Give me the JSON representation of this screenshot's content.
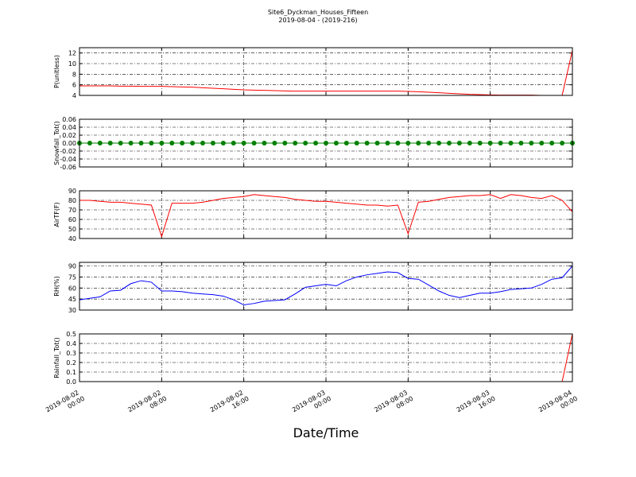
{
  "title": "Site6_Dyckman_Houses_Fifteen",
  "subtitle": "2019-08-04 - (2019-216)",
  "xlabel": "Date/Time",
  "chart_data": [
    {
      "type": "line",
      "ylabel": "P(unitless)",
      "color": "#ff0000",
      "grid": true,
      "x": [
        "2019-08-02 00:00",
        "2019-08-02 01:00",
        "2019-08-02 02:00",
        "2019-08-02 03:00",
        "2019-08-02 04:00",
        "2019-08-02 05:00",
        "2019-08-02 06:00",
        "2019-08-02 07:00",
        "2019-08-02 08:00",
        "2019-08-02 09:00",
        "2019-08-02 10:00",
        "2019-08-02 11:00",
        "2019-08-02 12:00",
        "2019-08-02 13:00",
        "2019-08-02 14:00",
        "2019-08-02 15:00",
        "2019-08-02 16:00",
        "2019-08-02 17:00",
        "2019-08-02 18:00",
        "2019-08-02 19:00",
        "2019-08-02 20:00",
        "2019-08-02 21:00",
        "2019-08-02 22:00",
        "2019-08-02 23:00",
        "2019-08-03 00:00",
        "2019-08-03 01:00",
        "2019-08-03 02:00",
        "2019-08-03 03:00",
        "2019-08-03 04:00",
        "2019-08-03 05:00",
        "2019-08-03 06:00",
        "2019-08-03 07:00",
        "2019-08-03 08:00",
        "2019-08-03 09:00",
        "2019-08-03 10:00",
        "2019-08-03 11:00",
        "2019-08-03 12:00",
        "2019-08-03 13:00",
        "2019-08-03 14:00",
        "2019-08-03 15:00",
        "2019-08-03 16:00",
        "2019-08-03 17:00",
        "2019-08-03 18:00",
        "2019-08-03 19:00",
        "2019-08-03 20:00",
        "2019-08-03 21:00",
        "2019-08-03 22:00",
        "2019-08-03 23:00",
        "2019-08-04 00:00"
      ],
      "values": [
        5.8,
        5.8,
        5.8,
        5.8,
        5.75,
        5.75,
        5.7,
        5.7,
        5.7,
        5.65,
        5.6,
        5.55,
        5.45,
        5.35,
        5.25,
        5.15,
        5.05,
        5.0,
        4.95,
        4.9,
        4.85,
        4.8,
        4.8,
        4.8,
        4.8,
        4.8,
        4.8,
        4.8,
        4.8,
        4.8,
        4.8,
        4.8,
        4.75,
        4.7,
        4.6,
        4.5,
        4.4,
        4.3,
        4.2,
        4.15,
        4.1,
        4.05,
        4.05,
        4.05,
        4.05,
        4.0,
        4.0,
        4.0,
        12.5
      ],
      "xlim": [
        "2019-08-02 00:00",
        "2019-08-04 00:00"
      ],
      "xticks": [
        "2019-08-02 00:00",
        "2019-08-02 08:00",
        "2019-08-02 16:00",
        "2019-08-03 00:00",
        "2019-08-03 08:00",
        "2019-08-03 16:00",
        "2019-08-04 00:00"
      ],
      "ylim": [
        4,
        13
      ],
      "yticks": [
        4,
        6,
        8,
        10,
        12
      ]
    },
    {
      "type": "line",
      "ylabel": "Snowfall_Tot()",
      "color": "#008000",
      "markers": true,
      "grid": true,
      "x": [
        "2019-08-02 00:00",
        "2019-08-02 01:00",
        "2019-08-02 02:00",
        "2019-08-02 03:00",
        "2019-08-02 04:00",
        "2019-08-02 05:00",
        "2019-08-02 06:00",
        "2019-08-02 07:00",
        "2019-08-02 08:00",
        "2019-08-02 09:00",
        "2019-08-02 10:00",
        "2019-08-02 11:00",
        "2019-08-02 12:00",
        "2019-08-02 13:00",
        "2019-08-02 14:00",
        "2019-08-02 15:00",
        "2019-08-02 16:00",
        "2019-08-02 17:00",
        "2019-08-02 18:00",
        "2019-08-02 19:00",
        "2019-08-02 20:00",
        "2019-08-02 21:00",
        "2019-08-02 22:00",
        "2019-08-02 23:00",
        "2019-08-03 00:00",
        "2019-08-03 01:00",
        "2019-08-03 02:00",
        "2019-08-03 03:00",
        "2019-08-03 04:00",
        "2019-08-03 05:00",
        "2019-08-03 06:00",
        "2019-08-03 07:00",
        "2019-08-03 08:00",
        "2019-08-03 09:00",
        "2019-08-03 10:00",
        "2019-08-03 11:00",
        "2019-08-03 12:00",
        "2019-08-03 13:00",
        "2019-08-03 14:00",
        "2019-08-03 15:00",
        "2019-08-03 16:00",
        "2019-08-03 17:00",
        "2019-08-03 18:00",
        "2019-08-03 19:00",
        "2019-08-03 20:00",
        "2019-08-03 21:00",
        "2019-08-03 22:00",
        "2019-08-03 23:00",
        "2019-08-04 00:00"
      ],
      "values": [
        0,
        0,
        0,
        0,
        0,
        0,
        0,
        0,
        0,
        0,
        0,
        0,
        0,
        0,
        0,
        0,
        0,
        0,
        0,
        0,
        0,
        0,
        0,
        0,
        0,
        0,
        0,
        0,
        0,
        0,
        0,
        0,
        0,
        0,
        0,
        0,
        0,
        0,
        0,
        0,
        0,
        0,
        0,
        0,
        0,
        0,
        0,
        0,
        0
      ],
      "xlim": [
        "2019-08-02 00:00",
        "2019-08-04 00:00"
      ],
      "xticks": [
        "2019-08-02 00:00",
        "2019-08-02 08:00",
        "2019-08-02 16:00",
        "2019-08-03 00:00",
        "2019-08-03 08:00",
        "2019-08-03 16:00",
        "2019-08-04 00:00"
      ],
      "ylim": [
        -0.06,
        0.06
      ],
      "yticks": [
        -0.06,
        -0.04,
        -0.02,
        {
          "value": 0,
          "label": "0.00"
        },
        0.02,
        0.04,
        0.06
      ]
    },
    {
      "type": "line",
      "ylabel": "AirTF(F)",
      "color": "#ff0000",
      "grid": true,
      "x": [
        "2019-08-02 00:00",
        "2019-08-02 01:00",
        "2019-08-02 02:00",
        "2019-08-02 03:00",
        "2019-08-02 04:00",
        "2019-08-02 05:00",
        "2019-08-02 06:00",
        "2019-08-02 07:00",
        "2019-08-02 08:00",
        "2019-08-02 09:00",
        "2019-08-02 10:00",
        "2019-08-02 11:00",
        "2019-08-02 12:00",
        "2019-08-02 13:00",
        "2019-08-02 14:00",
        "2019-08-02 15:00",
        "2019-08-02 16:00",
        "2019-08-02 17:00",
        "2019-08-02 18:00",
        "2019-08-02 19:00",
        "2019-08-02 20:00",
        "2019-08-02 21:00",
        "2019-08-02 22:00",
        "2019-08-02 23:00",
        "2019-08-03 00:00",
        "2019-08-03 01:00",
        "2019-08-03 02:00",
        "2019-08-03 03:00",
        "2019-08-03 04:00",
        "2019-08-03 05:00",
        "2019-08-03 06:00",
        "2019-08-03 07:00",
        "2019-08-03 08:00",
        "2019-08-03 09:00",
        "2019-08-03 10:00",
        "2019-08-03 11:00",
        "2019-08-03 12:00",
        "2019-08-03 13:00",
        "2019-08-03 14:00",
        "2019-08-03 15:00",
        "2019-08-03 16:00",
        "2019-08-03 17:00",
        "2019-08-03 18:00",
        "2019-08-03 19:00",
        "2019-08-03 20:00",
        "2019-08-03 21:00",
        "2019-08-03 22:00",
        "2019-08-03 23:00",
        "2019-08-04 00:00"
      ],
      "values": [
        80,
        80,
        79,
        78,
        78,
        77,
        76,
        75,
        42,
        77,
        77,
        77,
        78,
        80,
        82,
        83,
        84,
        86,
        85,
        84,
        83,
        81,
        80,
        79,
        79,
        78,
        77,
        76,
        75,
        75,
        74,
        75,
        45,
        78,
        79,
        81,
        83,
        84,
        85,
        85,
        86,
        82,
        86,
        85,
        83,
        82,
        85,
        80,
        68
      ],
      "xlim": [
        "2019-08-02 00:00",
        "2019-08-04 00:00"
      ],
      "xticks": [
        "2019-08-02 00:00",
        "2019-08-02 08:00",
        "2019-08-02 16:00",
        "2019-08-03 00:00",
        "2019-08-03 08:00",
        "2019-08-03 16:00",
        "2019-08-04 00:00"
      ],
      "ylim": [
        40,
        90
      ],
      "yticks": [
        40,
        50,
        60,
        70,
        80,
        90
      ]
    },
    {
      "type": "line",
      "ylabel": "RH(%)",
      "color": "#0000ff",
      "grid": true,
      "x": [
        "2019-08-02 00:00",
        "2019-08-02 01:00",
        "2019-08-02 02:00",
        "2019-08-02 03:00",
        "2019-08-02 04:00",
        "2019-08-02 05:00",
        "2019-08-02 06:00",
        "2019-08-02 07:00",
        "2019-08-02 08:00",
        "2019-08-02 09:00",
        "2019-08-02 10:00",
        "2019-08-02 11:00",
        "2019-08-02 12:00",
        "2019-08-02 13:00",
        "2019-08-02 14:00",
        "2019-08-02 15:00",
        "2019-08-02 16:00",
        "2019-08-02 17:00",
        "2019-08-02 18:00",
        "2019-08-02 19:00",
        "2019-08-02 20:00",
        "2019-08-02 21:00",
        "2019-08-02 22:00",
        "2019-08-02 23:00",
        "2019-08-03 00:00",
        "2019-08-03 01:00",
        "2019-08-03 02:00",
        "2019-08-03 03:00",
        "2019-08-03 04:00",
        "2019-08-03 05:00",
        "2019-08-03 06:00",
        "2019-08-03 07:00",
        "2019-08-03 08:00",
        "2019-08-03 09:00",
        "2019-08-03 10:00",
        "2019-08-03 11:00",
        "2019-08-03 12:00",
        "2019-08-03 13:00",
        "2019-08-03 14:00",
        "2019-08-03 15:00",
        "2019-08-03 16:00",
        "2019-08-03 17:00",
        "2019-08-03 18:00",
        "2019-08-03 19:00",
        "2019-08-03 20:00",
        "2019-08-03 21:00",
        "2019-08-03 22:00",
        "2019-08-03 23:00",
        "2019-08-04 00:00"
      ],
      "values": [
        44,
        46,
        48,
        56,
        57,
        66,
        70,
        68,
        56,
        56,
        55,
        53,
        52,
        51,
        49,
        44,
        37,
        39,
        42,
        43,
        44,
        52,
        61,
        63,
        65,
        63,
        70,
        75,
        78,
        80,
        82,
        81,
        73,
        72,
        64,
        56,
        50,
        47,
        50,
        53,
        53,
        55,
        58,
        59,
        60,
        65,
        72,
        74,
        90
      ],
      "xlim": [
        "2019-08-02 00:00",
        "2019-08-04 00:00"
      ],
      "xticks": [
        "2019-08-02 00:00",
        "2019-08-02 08:00",
        "2019-08-02 16:00",
        "2019-08-03 00:00",
        "2019-08-03 08:00",
        "2019-08-03 16:00",
        "2019-08-04 00:00"
      ],
      "ylim": [
        30,
        95
      ],
      "yticks": [
        30,
        45,
        60,
        75,
        90
      ]
    },
    {
      "type": "line",
      "ylabel": "Rainfall_Tot()",
      "color": "#ff0000",
      "grid": true,
      "x": [
        "2019-08-02 00:00",
        "2019-08-02 01:00",
        "2019-08-02 02:00",
        "2019-08-02 03:00",
        "2019-08-02 04:00",
        "2019-08-02 05:00",
        "2019-08-02 06:00",
        "2019-08-02 07:00",
        "2019-08-02 08:00",
        "2019-08-02 09:00",
        "2019-08-02 10:00",
        "2019-08-02 11:00",
        "2019-08-02 12:00",
        "2019-08-02 13:00",
        "2019-08-02 14:00",
        "2019-08-02 15:00",
        "2019-08-02 16:00",
        "2019-08-02 17:00",
        "2019-08-02 18:00",
        "2019-08-02 19:00",
        "2019-08-02 20:00",
        "2019-08-02 21:00",
        "2019-08-02 22:00",
        "2019-08-02 23:00",
        "2019-08-03 00:00",
        "2019-08-03 01:00",
        "2019-08-03 02:00",
        "2019-08-03 03:00",
        "2019-08-03 04:00",
        "2019-08-03 05:00",
        "2019-08-03 06:00",
        "2019-08-03 07:00",
        "2019-08-03 08:00",
        "2019-08-03 09:00",
        "2019-08-03 10:00",
        "2019-08-03 11:00",
        "2019-08-03 12:00",
        "2019-08-03 13:00",
        "2019-08-03 14:00",
        "2019-08-03 15:00",
        "2019-08-03 16:00",
        "2019-08-03 17:00",
        "2019-08-03 18:00",
        "2019-08-03 19:00",
        "2019-08-03 20:00",
        "2019-08-03 21:00",
        "2019-08-03 22:00",
        "2019-08-03 23:00",
        "2019-08-04 00:00"
      ],
      "values": [
        0,
        0,
        0,
        0,
        0,
        0,
        0,
        0,
        0,
        0,
        0,
        0,
        0,
        0,
        0,
        0,
        0,
        0,
        0,
        0,
        0,
        0,
        0,
        0,
        0,
        0,
        0,
        0,
        0,
        0,
        0,
        0,
        0,
        0,
        0,
        0,
        0,
        0,
        0,
        0,
        0,
        0,
        0,
        0,
        0,
        0,
        0,
        0,
        0.5
      ],
      "xlim": [
        "2019-08-02 00:00",
        "2019-08-04 00:00"
      ],
      "xticks": [
        "2019-08-02 00:00",
        "2019-08-02 08:00",
        "2019-08-02 16:00",
        "2019-08-03 00:00",
        "2019-08-03 08:00",
        "2019-08-03 16:00",
        "2019-08-04 00:00"
      ],
      "ylim": [
        0,
        0.5
      ],
      "yticks": [
        {
          "value": 0,
          "label": "0.0"
        },
        0.1,
        0.2,
        0.3,
        0.4,
        0.5
      ]
    }
  ]
}
